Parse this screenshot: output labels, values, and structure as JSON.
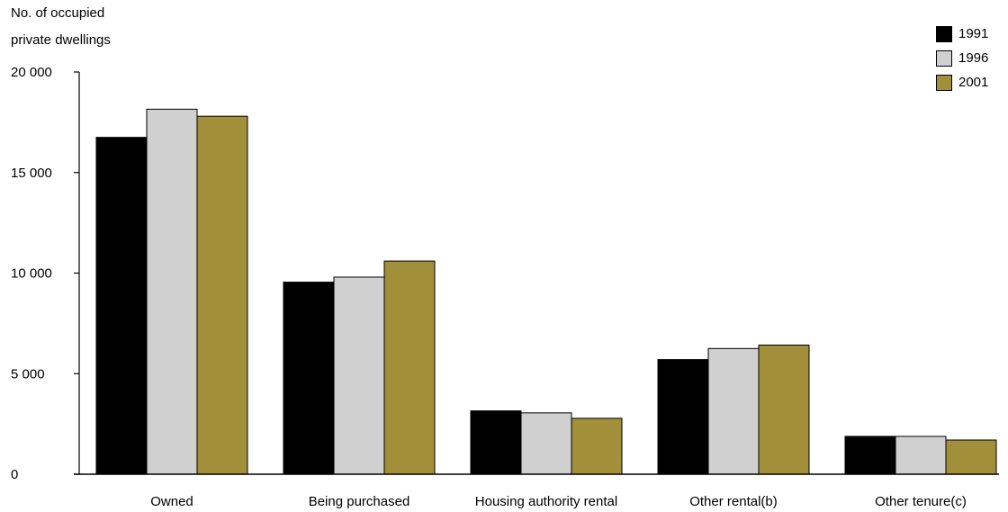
{
  "chart_data": {
    "type": "bar",
    "ylabel_lines": [
      "No. of occupied",
      "private dwellings"
    ],
    "categories": [
      "Owned",
      "Being purchased",
      "Housing authority rental",
      "Other rental(b)",
      "Other tenure(c)"
    ],
    "series": [
      {
        "name": "1991",
        "color": "#000000",
        "values": [
          16750,
          9550,
          3150,
          5700,
          1880
        ]
      },
      {
        "name": "1996",
        "color": "#d0d0d0",
        "values": [
          18150,
          9800,
          3050,
          6250,
          1880
        ]
      },
      {
        "name": "2001",
        "color": "#a28f3a",
        "values": [
          17800,
          10600,
          2780,
          6420,
          1700
        ]
      }
    ],
    "ylim": [
      0,
      20000
    ],
    "yticks": [
      0,
      5000,
      10000,
      15000,
      20000
    ],
    "ytick_labels": [
      "0",
      "5 000",
      "10 000",
      "15 000",
      "20 000"
    ],
    "grid": false,
    "legend_position": "top-right"
  }
}
